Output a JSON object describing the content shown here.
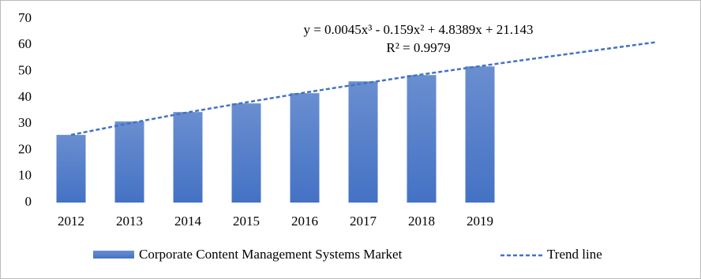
{
  "chart_data": {
    "type": "bar",
    "categories": [
      "2012",
      "2013",
      "2014",
      "2015",
      "2016",
      "2017",
      "2018",
      "2019",
      null,
      null,
      null
    ],
    "series": [
      {
        "name": "Corporate Content Management Systems Market",
        "color": "#4472c4",
        "values": [
          25.8,
          30.9,
          34.5,
          37.8,
          41.7,
          46.2,
          48.6,
          51.9,
          null,
          null,
          null
        ]
      },
      {
        "name": "Trend line",
        "color": "#4472c4",
        "type": "line",
        "dashed": true,
        "values": [
          25.8,
          30.2,
          34.4,
          38.2,
          41.9,
          45.4,
          48.8,
          52.0,
          55.1,
          58.1,
          61.1
        ]
      }
    ],
    "annotations": [
      "y = 0.0045x³ - 0.159x² + 4.8389x + 21.143",
      "R² = 0.9979"
    ],
    "ylim": [
      0,
      70
    ],
    "yticks": [
      0,
      10,
      20,
      30,
      40,
      50,
      60,
      70
    ],
    "grid": false,
    "legend": "bottom"
  }
}
